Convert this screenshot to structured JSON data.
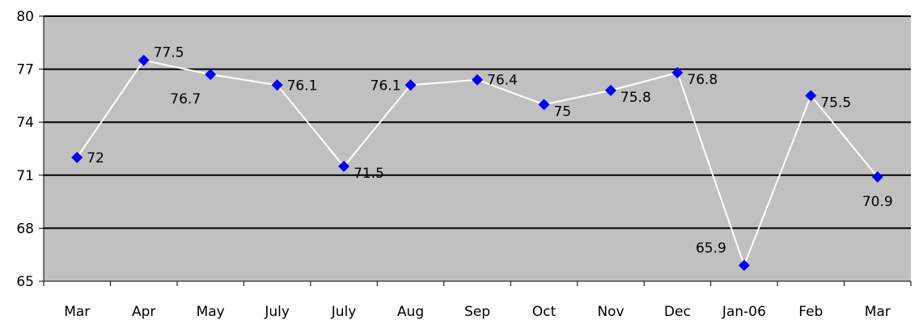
{
  "chart_data": {
    "type": "line",
    "title": "",
    "xlabel": "",
    "ylabel": "",
    "categories": [
      "Mar",
      "Apr",
      "May",
      "July",
      "July",
      "Aug",
      "Sep",
      "Oct",
      "Nov",
      "Dec",
      "Jan-06",
      "Feb",
      "Mar"
    ],
    "values": [
      72,
      77.5,
      76.7,
      76.1,
      71.5,
      76.1,
      76.4,
      75,
      75.8,
      76.8,
      65.9,
      75.5,
      70.9
    ],
    "value_labels": [
      "72",
      "77.5",
      "76.7",
      "76.1",
      "71.5",
      "76.1",
      "76.4",
      "75",
      "75.8",
      "76.8",
      "65.9",
      "75.5",
      "70.9"
    ],
    "label_positions": [
      "right",
      "right",
      "below-left",
      "right",
      "right",
      "left",
      "right",
      "right",
      "right",
      "right",
      "above-left",
      "right",
      "below"
    ],
    "ylim": [
      65,
      80
    ],
    "yticks": [
      65,
      68,
      71,
      74,
      77,
      80
    ],
    "ytick_labels": [
      "65",
      "68",
      "71",
      "74",
      "77",
      "80"
    ],
    "grid": true,
    "legend": "none",
    "colors": {
      "plot_background": "#c0c0c0",
      "gridline": "#000000",
      "line": "#ffffff",
      "marker": "#0000ff"
    }
  }
}
